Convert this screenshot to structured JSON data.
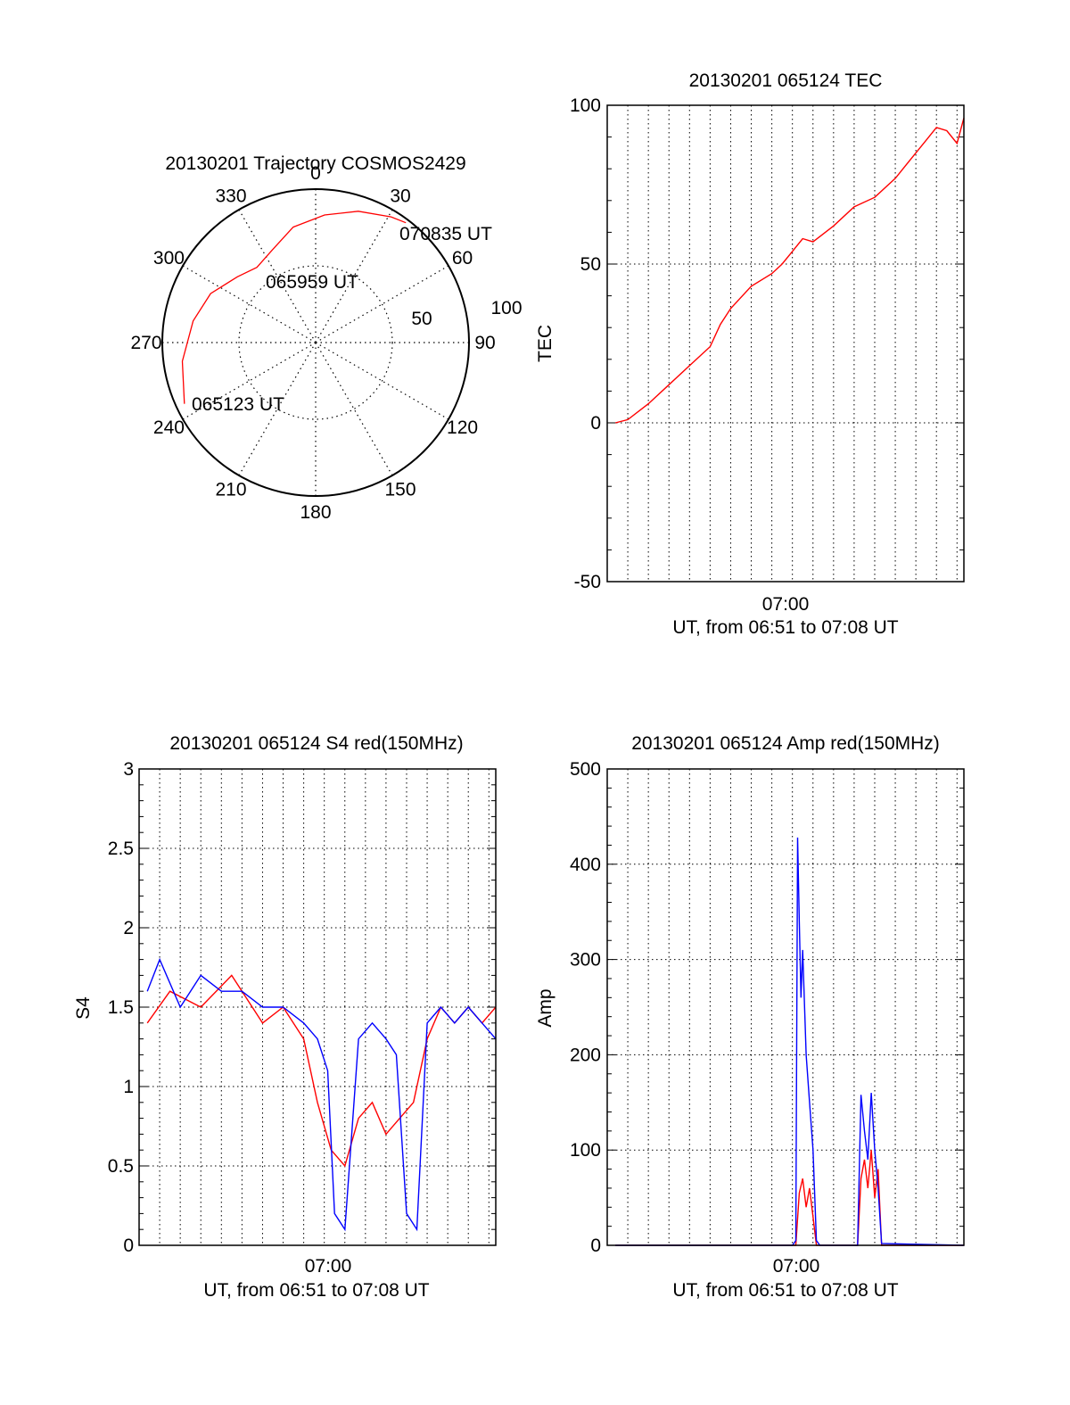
{
  "colors": {
    "red": "#ff0000",
    "blue": "#0000ff",
    "axis": "#000000",
    "grid": "#000000"
  },
  "chart_data": [
    {
      "id": "polar",
      "type": "polar",
      "title": "20130201 Trajectory COSMOS2429",
      "azimuth_ticks": [
        "0",
        "30",
        "60",
        "90",
        "120",
        "150",
        "180",
        "210",
        "240",
        "270",
        "300",
        "330"
      ],
      "radial_tick_labels": [
        "50",
        "100"
      ],
      "trajectory": [
        {
          "azimuth": 245,
          "range": 85
        },
        {
          "azimuth": 262,
          "range": 79
        },
        {
          "azimuth": 280,
          "range": 73
        },
        {
          "azimuth": 295,
          "range": 68
        },
        {
          "azimuth": 310,
          "range": 60
        },
        {
          "azimuth": 322,
          "range": 56
        },
        {
          "azimuth": 335,
          "range": 60
        },
        {
          "azimuth": 349,
          "range": 69
        },
        {
          "azimuth": 4,
          "range": 75
        },
        {
          "azimuth": 18,
          "range": 81
        },
        {
          "azimuth": 31,
          "range": 86
        },
        {
          "azimuth": 37,
          "range": 88
        }
      ],
      "annotations": [
        {
          "text": "070835 UT"
        },
        {
          "text": "065959 UT"
        },
        {
          "text": "065123 UT"
        }
      ]
    },
    {
      "id": "tec",
      "type": "line",
      "title": "20130201 065124 TEC",
      "xlabel": "UT, from 06:51 to 07:08 UT",
      "ylabel": "TEC",
      "xlim": [
        6.85,
        7.1389
      ],
      "ylim": [
        -50,
        100
      ],
      "yticks": [
        "100",
        "50",
        "0",
        "-50"
      ],
      "xticks": [
        "07:00"
      ],
      "series": [
        {
          "color": "red",
          "x": [
            "06:51:24",
            "06:52:00",
            "06:53:00",
            "06:54:00",
            "06:55:00",
            "06:56:00",
            "06:56:30",
            "06:57:00",
            "06:58:00",
            "06:59:00",
            "06:59:30",
            "07:00:00",
            "07:00:30",
            "07:01:00",
            "07:02:00",
            "07:03:00",
            "07:04:00",
            "07:05:00",
            "07:06:00",
            "07:06:30",
            "07:07:00",
            "07:07:30",
            "07:08:00",
            "07:08:20"
          ],
          "y": [
            0,
            1,
            6,
            12,
            18,
            24,
            31,
            36,
            43,
            47,
            50,
            54,
            58,
            57,
            62,
            68,
            71,
            77,
            85,
            89,
            93,
            92,
            88,
            96
          ]
        }
      ]
    },
    {
      "id": "s4",
      "type": "line",
      "title": "20130201 065124 S4 red(150MHz)",
      "xlabel": "UT, from 06:51 to 07:08 UT",
      "ylabel": "S4",
      "xlim": [
        6.85,
        7.1389
      ],
      "ylim": [
        0,
        3
      ],
      "yticks": [
        "3",
        "2.5",
        "2",
        "1.5",
        "1",
        "0.5",
        "0"
      ],
      "xticks": [
        "07:00"
      ],
      "series": [
        {
          "color": "red",
          "x": [
            "06:51:24",
            "06:52:30",
            "06:54:00",
            "06:55:30",
            "06:57:00",
            "06:58:00",
            "06:59:00",
            "06:59:40",
            "07:00:20",
            "07:01:00",
            "07:01:40",
            "07:02:20",
            "07:03:00",
            "07:03:40",
            "07:04:20",
            "07:05:00",
            "07:05:40",
            "07:06:20",
            "07:07:00",
            "07:07:40",
            "07:08:20"
          ],
          "y": [
            1.4,
            1.6,
            1.5,
            1.7,
            1.4,
            1.5,
            1.3,
            0.9,
            0.6,
            0.5,
            0.8,
            0.9,
            0.7,
            0.8,
            0.9,
            1.3,
            1.5,
            1.4,
            1.5,
            1.4,
            1.5
          ]
        },
        {
          "color": "blue",
          "x": [
            "06:51:24",
            "06:52:00",
            "06:53:00",
            "06:54:00",
            "06:55:00",
            "06:56:00",
            "06:57:00",
            "06:58:00",
            "06:59:00",
            "06:59:40",
            "07:00:10",
            "07:00:30",
            "07:01:00",
            "07:01:40",
            "07:02:20",
            "07:03:00",
            "07:03:30",
            "07:04:00",
            "07:04:30",
            "07:05:00",
            "07:05:40",
            "07:06:20",
            "07:07:00",
            "07:07:40",
            "07:08:20"
          ],
          "y": [
            1.6,
            1.8,
            1.5,
            1.7,
            1.6,
            1.6,
            1.5,
            1.5,
            1.4,
            1.3,
            1.1,
            0.2,
            0.1,
            1.3,
            1.4,
            1.3,
            1.2,
            0.2,
            0.1,
            1.4,
            1.5,
            1.4,
            1.5,
            1.4,
            1.3
          ]
        }
      ]
    },
    {
      "id": "amp",
      "type": "line",
      "title": "20130201 065124 Amp red(150MHz)",
      "xlabel": "UT, from 06:51 to 07:08 UT",
      "ylabel": "Amp",
      "xlim": [
        6.85,
        7.1389
      ],
      "ylim": [
        0,
        500
      ],
      "yticks": [
        "500",
        "400",
        "300",
        "200",
        "100",
        "0"
      ],
      "xticks": [
        "07:00"
      ],
      "series": [
        {
          "color": "red",
          "x": [
            "06:51:24",
            "07:00:10",
            "07:00:20",
            "07:00:30",
            "07:00:40",
            "07:00:50",
            "07:01:00",
            "07:01:10",
            "07:01:20",
            "07:03:10",
            "07:03:20",
            "07:03:30",
            "07:03:40",
            "07:03:50",
            "07:04:00",
            "07:04:10",
            "07:04:20",
            "07:08:20"
          ],
          "y": [
            0,
            0,
            55,
            70,
            40,
            60,
            30,
            0,
            0,
            0,
            70,
            90,
            60,
            100,
            50,
            80,
            0,
            0
          ]
        },
        {
          "color": "blue",
          "x": [
            "06:51:24",
            "07:00:00",
            "07:00:10",
            "07:00:15",
            "07:00:20",
            "07:00:25",
            "07:00:30",
            "07:00:40",
            "07:00:50",
            "07:01:00",
            "07:01:10",
            "07:01:20",
            "07:03:10",
            "07:03:20",
            "07:03:30",
            "07:03:40",
            "07:03:50",
            "07:04:00",
            "07:04:10",
            "07:04:20",
            "07:08:20"
          ],
          "y": [
            0,
            0,
            5,
            428,
            340,
            260,
            310,
            200,
            150,
            100,
            5,
            0,
            0,
            158,
            120,
            90,
            160,
            100,
            60,
            2,
            0
          ]
        }
      ]
    }
  ]
}
